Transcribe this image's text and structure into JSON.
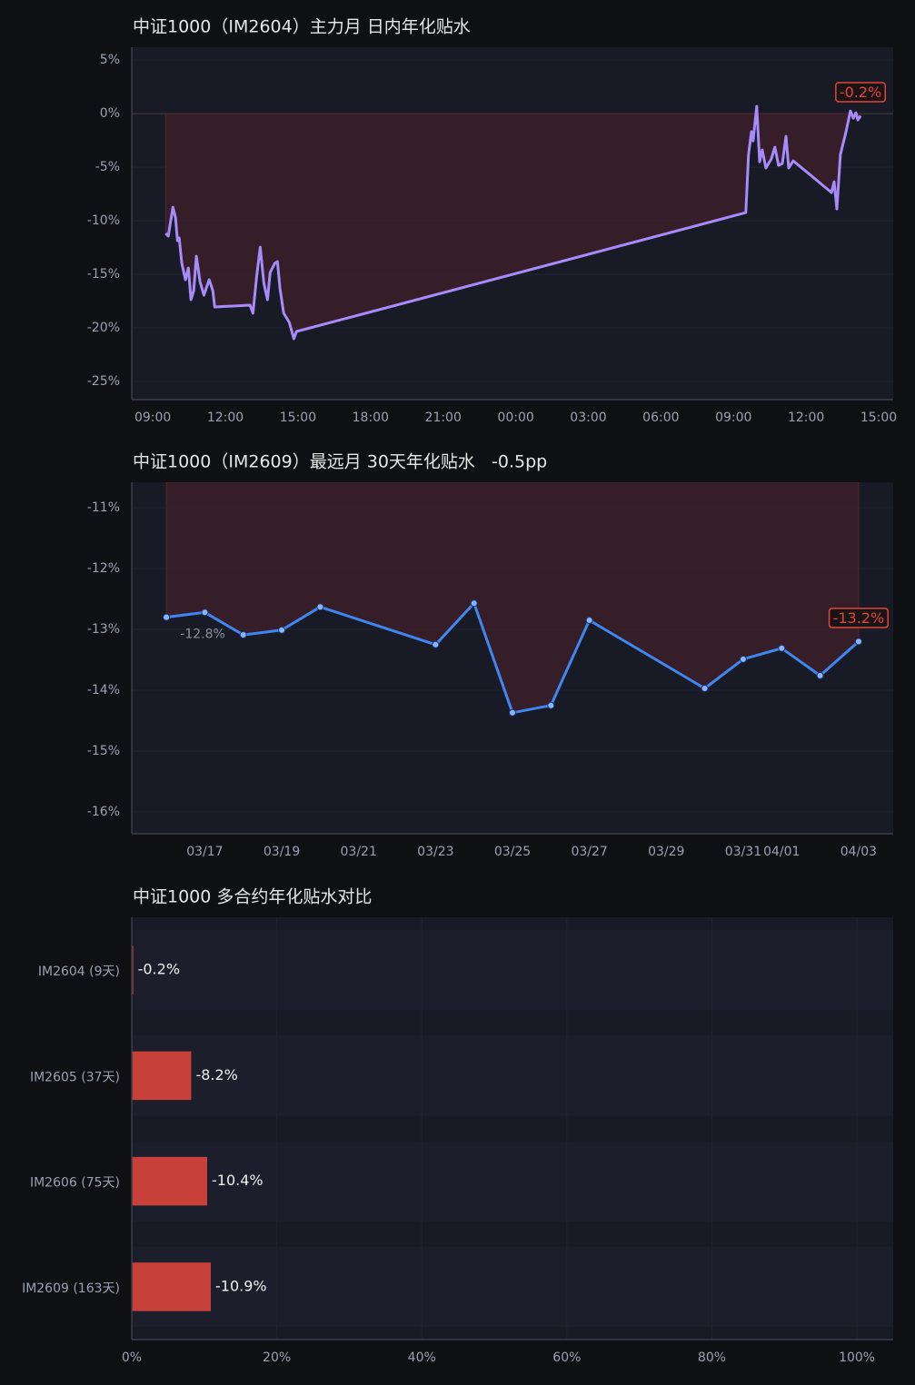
{
  "chart_data": [
    {
      "type": "line",
      "title": "中证1000（IM2604）主力月 日内年化贴水",
      "x": [
        9.53,
        9.64,
        9.83,
        9.94,
        10.02,
        10.09,
        10.2,
        10.35,
        10.47,
        10.58,
        10.69,
        10.8,
        10.95,
        11.11,
        11.33,
        11.48,
        11.56,
        13.02,
        13.14,
        13.29,
        13.44,
        13.59,
        13.74,
        13.85,
        14.04,
        14.15,
        14.26,
        14.41,
        14.64,
        14.83,
        14.94,
        33.51,
        33.62,
        33.74,
        33.81,
        33.96,
        34.08,
        34.19,
        34.34,
        34.56,
        34.71,
        34.86,
        35.02,
        35.17,
        35.28,
        35.47,
        37.05,
        37.16,
        37.27,
        37.42,
        37.65,
        37.83,
        37.95,
        38.06,
        38.14,
        38.25
      ],
      "values": [
        -11.19,
        -11.44,
        -8.73,
        -9.75,
        -11.86,
        -11.61,
        -13.98,
        -15.51,
        -14.41,
        -17.37,
        -16.53,
        -13.31,
        -15.68,
        -16.95,
        -15.51,
        -16.53,
        -18.05,
        -17.88,
        -18.64,
        -15.25,
        -12.46,
        -15.85,
        -17.37,
        -14.83,
        -13.98,
        -13.81,
        -16.36,
        -18.64,
        -19.49,
        -21.02,
        -20.34,
        -9.24,
        -3.81,
        -1.69,
        -2.54,
        0.68,
        -4.49,
        -3.39,
        -5.08,
        -4.24,
        -3.14,
        -4.83,
        -4.66,
        -2.12,
        -5.08,
        -4.41,
        -7.37,
        -6.36,
        -8.9,
        -3.81,
        -1.69,
        0.25,
        -0.42,
        0.08,
        -0.59,
        -0.2
      ],
      "color": "#a78bfa",
      "fill_color": "#3a1f2a",
      "markers": false,
      "xlim": [
        8.13,
        39.6
      ],
      "xticks": [
        {
          "value": 9,
          "label": "09:00"
        },
        {
          "value": 12,
          "label": "12:00"
        },
        {
          "value": 15,
          "label": "15:00"
        },
        {
          "value": 18,
          "label": "18:00"
        },
        {
          "value": 21,
          "label": "21:00"
        },
        {
          "value": 24,
          "label": "00:00"
        },
        {
          "value": 27,
          "label": "03:00"
        },
        {
          "value": 30,
          "label": "06:00"
        },
        {
          "value": 33,
          "label": "09:00"
        },
        {
          "value": 36,
          "label": "12:00"
        },
        {
          "value": 39,
          "label": "15:00"
        }
      ],
      "ylim": [
        -26.7,
        6.2
      ],
      "yticks": [
        {
          "value": 5,
          "label": "5%"
        },
        {
          "value": 0,
          "label": "0%"
        },
        {
          "value": -5,
          "label": "-5%"
        },
        {
          "value": -10,
          "label": "-10%"
        },
        {
          "value": -15,
          "label": "-15%"
        },
        {
          "value": -20,
          "label": "-20%"
        },
        {
          "value": -25,
          "label": "-25%"
        }
      ],
      "grid": true,
      "annotations": [
        {
          "text": "-0.2%",
          "index": 55,
          "boxed": true,
          "color": "#e0453a"
        }
      ]
    },
    {
      "type": "line",
      "title": "中证1000（IM2609）最远月 30天年化贴水   -0.5pp",
      "x": [
        "03/16",
        "03/17",
        "03/18",
        "03/19",
        "03/20",
        "03/23",
        "03/24",
        "03/25",
        "03/26",
        "03/27",
        "03/30",
        "03/31",
        "04/01",
        "04/02",
        "04/03"
      ],
      "values": [
        -12.8,
        -12.72,
        -13.09,
        -13.01,
        -12.63,
        -13.25,
        -12.57,
        -14.37,
        -14.25,
        -12.85,
        -13.97,
        -13.49,
        -13.31,
        -13.76,
        -13.2
      ],
      "color": "#3f86ef",
      "fill_color": "#3a1f2a",
      "markers": true,
      "xticks": [
        "03/17",
        "03/19",
        "03/21",
        "03/23",
        "03/25",
        "03/27",
        "03/29",
        "03/31",
        "04/01",
        "04/03"
      ],
      "ylim": [
        -16.36,
        -10.58
      ],
      "yticks": [
        {
          "value": -11,
          "label": "-11%"
        },
        {
          "value": -12,
          "label": "-12%"
        },
        {
          "value": -13,
          "label": "-13%"
        },
        {
          "value": -14,
          "label": "-14%"
        },
        {
          "value": -15,
          "label": "-15%"
        },
        {
          "value": -16,
          "label": "-16%"
        }
      ],
      "grid": true,
      "annotations": [
        {
          "text": "-12.8%",
          "index": 0,
          "boxed": false,
          "color": "#8a8f9c"
        },
        {
          "text": "-13.2%",
          "index": 14,
          "boxed": true,
          "color": "#e0453a"
        }
      ]
    },
    {
      "type": "barh",
      "title": "中证1000 多合约年化贴水对比",
      "categories": [
        "IM2604 (9天)",
        "IM2605 (37天)",
        "IM2606 (75天)",
        "IM2609 (163天)"
      ],
      "values": [
        -0.2,
        -8.2,
        -10.4,
        -10.9
      ],
      "value_labels": [
        "-0.2%",
        "-8.2%",
        "-10.4%",
        "-10.9%"
      ],
      "color": "#c8403a",
      "xlim": [
        0,
        105
      ],
      "xticks": [
        {
          "value": 0,
          "label": "0%"
        },
        {
          "value": 20,
          "label": "20%"
        },
        {
          "value": 40,
          "label": "40%"
        },
        {
          "value": 60,
          "label": "60%"
        },
        {
          "value": 80,
          "label": "80%"
        },
        {
          "value": 100,
          "label": "100%"
        }
      ],
      "grid": true
    }
  ]
}
